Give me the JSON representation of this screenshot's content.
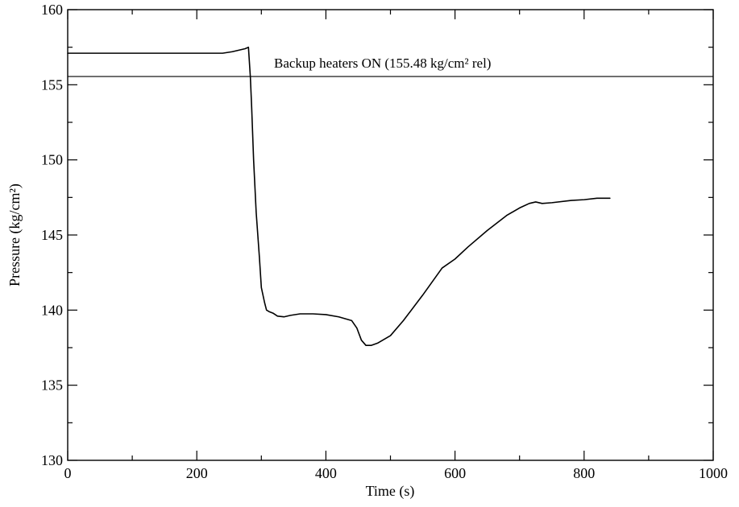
{
  "chart_data": {
    "type": "line",
    "title": "",
    "xlabel": "Time (s)",
    "ylabel": "Pressure (kg/cm²)",
    "xlim": [
      0,
      1000
    ],
    "ylim": [
      130,
      160
    ],
    "xticks": [
      0,
      200,
      400,
      600,
      800,
      1000
    ],
    "yticks": [
      130,
      135,
      140,
      145,
      150,
      155,
      160
    ],
    "xtick_labels": [
      "0",
      "200",
      "400",
      "600",
      "800",
      "1000"
    ],
    "ytick_labels": [
      "130",
      "135",
      "140",
      "145",
      "150",
      "155",
      "160"
    ],
    "grid": false,
    "reference_lines": [
      {
        "y": 155.55,
        "label": "Backup heaters ON (155.48 kg/cm² rel)"
      }
    ],
    "series": [
      {
        "x": [
          0,
          50,
          100,
          150,
          200,
          240,
          255,
          265,
          275,
          280,
          283,
          285,
          288,
          292,
          297,
          300,
          305,
          308,
          312,
          318,
          325,
          335,
          345,
          360,
          380,
          400,
          420,
          440,
          448,
          455,
          462,
          470,
          480,
          500,
          520,
          550,
          580,
          600,
          620,
          650,
          680,
          700,
          715,
          725,
          735,
          750,
          780,
          800,
          820,
          840
        ],
        "y": [
          157.1,
          157.1,
          157.1,
          157.1,
          157.1,
          157.1,
          157.2,
          157.3,
          157.4,
          157.5,
          155.5,
          153.5,
          150.0,
          146.5,
          143.5,
          141.5,
          140.5,
          140.0,
          139.9,
          139.8,
          139.6,
          139.55,
          139.65,
          139.75,
          139.75,
          139.7,
          139.55,
          139.3,
          138.8,
          138.0,
          137.65,
          137.65,
          137.8,
          138.3,
          139.3,
          141.0,
          142.8,
          143.4,
          144.2,
          145.3,
          146.3,
          146.8,
          147.1,
          147.2,
          147.1,
          147.15,
          147.3,
          147.35,
          147.45,
          147.45
        ]
      }
    ],
    "colors": {
      "line": "#000000",
      "axis": "#000000",
      "background": "#ffffff"
    }
  }
}
